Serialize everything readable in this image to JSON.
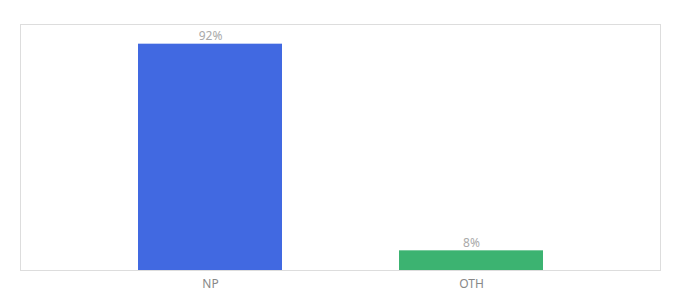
{
  "chart_data": {
    "type": "bar",
    "categories": [
      "NP",
      "OTH"
    ],
    "values": [
      92,
      8
    ],
    "value_labels": [
      "92%",
      "8%"
    ],
    "colors": [
      "#4169E1",
      "#3CB371"
    ],
    "ylim": [
      0,
      100
    ],
    "data_labels": true,
    "tick_labels": "x"
  }
}
